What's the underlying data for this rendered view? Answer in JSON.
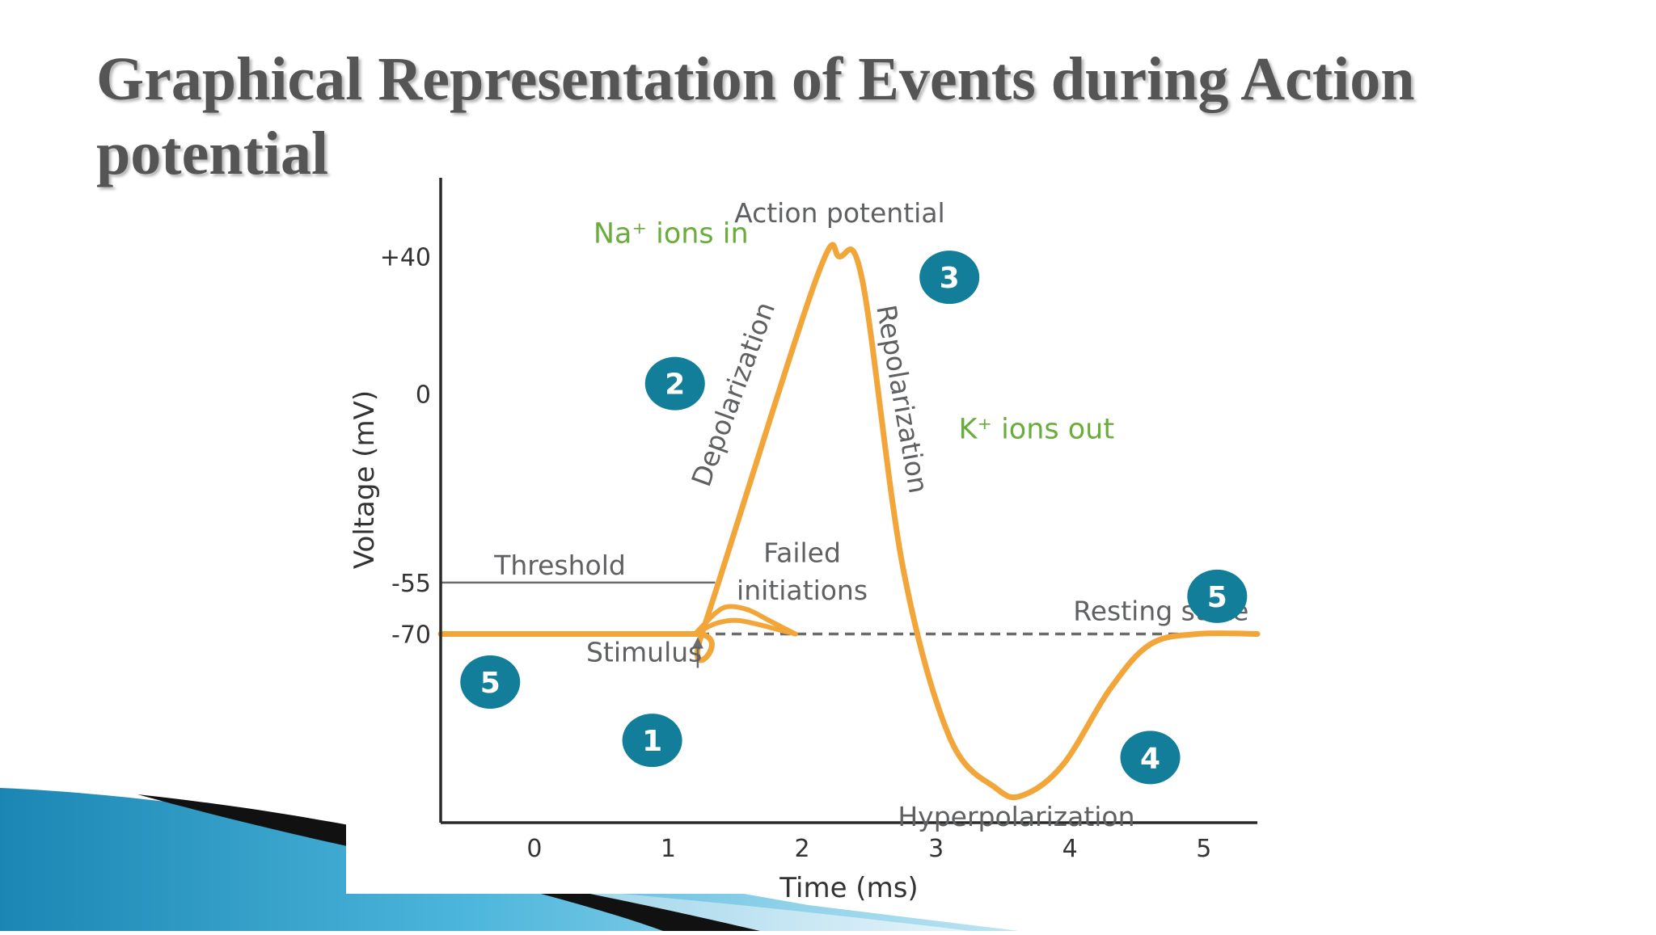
{
  "slide": {
    "title": "Graphical Representation of Events during Action potential"
  },
  "colors": {
    "curve": "#f2a63a",
    "badge": "#127e99",
    "ion_text": "#6aad3d",
    "label_text": "#5f6062",
    "axis": "#2a2a2a",
    "decor_blue": "#3aa6cc"
  },
  "chart_data": {
    "type": "line",
    "xlabel": "Time (ms)",
    "ylabel": "Voltage (mV)",
    "x_ticks": [
      "0",
      "1",
      "2",
      "3",
      "4",
      "5"
    ],
    "y_ticks": [
      {
        "label": "+40",
        "value": 40
      },
      {
        "label": "0",
        "value": 0
      },
      {
        "label": "-55",
        "value": -55
      },
      {
        "label": "-70",
        "value": -70
      }
    ],
    "xlim": [
      -0.7,
      5.4
    ],
    "ylim": [
      -125,
      63
    ],
    "series": [
      {
        "values_x": [
          -0.7,
          1.2,
          1.25,
          2.1,
          2.28,
          2.45,
          2.75,
          3.1,
          3.45,
          3.65,
          3.95,
          4.3,
          4.6,
          4.95,
          5.4
        ],
        "values_y": [
          -70,
          -70,
          -70,
          33,
          40,
          33,
          -50,
          -100,
          -115,
          -117,
          -108,
          -86,
          -73,
          -70,
          -70
        ]
      }
    ],
    "failed_initiations": [
      {
        "values_x": [
          1.2,
          1.35,
          1.45,
          1.6,
          1.75,
          1.95
        ],
        "values_y": [
          -70,
          -64,
          -62,
          -63,
          -66,
          -70
        ]
      },
      {
        "values_x": [
          1.2,
          1.35,
          1.5,
          1.65,
          1.8,
          1.95
        ],
        "values_y": [
          -70,
          -67,
          -66,
          -67,
          -68.5,
          -70
        ]
      }
    ],
    "threshold": {
      "label": "Threshold",
      "value": -55,
      "x_from": -0.7,
      "x_to": 1.35
    },
    "resting_line": {
      "value": -70
    },
    "annotations": [
      {
        "text": "Action potential",
        "x": 2.28,
        "y": 50,
        "color": "label_text",
        "anchor": "middle",
        "size": 33
      },
      {
        "text": "Failed",
        "x": 2.0,
        "y": -49,
        "color": "label_text",
        "anchor": "middle",
        "size": 33
      },
      {
        "text": "initiations",
        "x": 2.0,
        "y": -60,
        "color": "label_text",
        "anchor": "middle",
        "size": 33
      },
      {
        "text": "Stimulus",
        "x": 0.82,
        "y": -78,
        "color": "label_text",
        "anchor": "middle",
        "size": 33
      },
      {
        "text": "Resting state",
        "x": 4.68,
        "y": -66,
        "color": "label_text",
        "anchor": "middle",
        "size": 33
      },
      {
        "text": "Hyperpolarization",
        "x": 3.6,
        "y": -126,
        "color": "label_text",
        "anchor": "middle",
        "size": 33
      },
      {
        "text": "K⁺ ions out",
        "x": 3.75,
        "y": -13,
        "color": "ion_text",
        "anchor": "middle",
        "size": 35
      },
      {
        "text": "Na⁺ ions in",
        "x": 1.02,
        "y": 44,
        "color": "ion_text",
        "anchor": "middle",
        "size": 35
      }
    ],
    "rotated_labels": [
      {
        "text": "Depolarization",
        "x": 1.55,
        "y": -1,
        "rotate": -70,
        "size": 33
      },
      {
        "text": "Repolarization",
        "x": 2.68,
        "y": -2,
        "rotate": 80,
        "size": 33
      }
    ],
    "badges": [
      {
        "label": "1",
        "x": 0.88,
        "y": -101
      },
      {
        "label": "2",
        "x": 1.05,
        "y": 3
      },
      {
        "label": "3",
        "x": 3.1,
        "y": 34
      },
      {
        "label": "4",
        "x": 4.6,
        "y": -106
      },
      {
        "label": "5",
        "x": -0.33,
        "y": -84
      },
      {
        "label": "5",
        "x": 5.1,
        "y": -59
      }
    ],
    "stimulus_arrow": {
      "x": 1.22,
      "y_from": -78,
      "y_to": -70
    },
    "grid": false,
    "legend": "none"
  }
}
